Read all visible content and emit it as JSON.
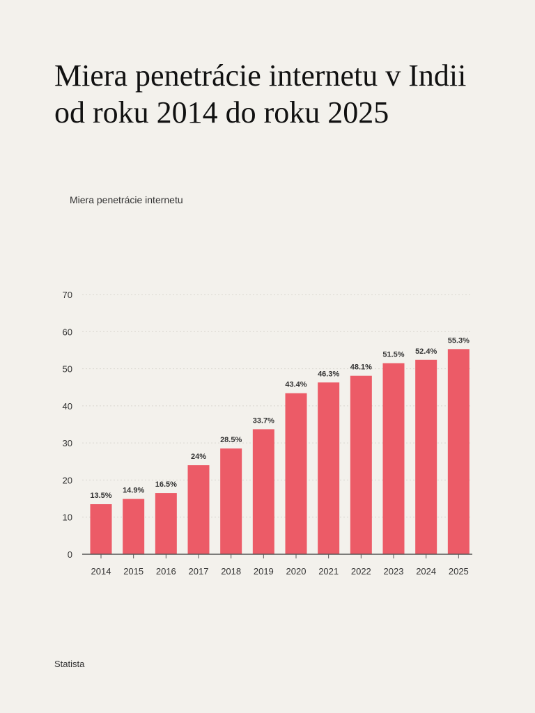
{
  "title": "Miera penetrácie internetu v Indii od roku 2014 do roku 2025",
  "source": "Statista",
  "chart_data": {
    "type": "bar",
    "title": "Miera penetrácie internetu v Indii od roku 2014 do roku 2025",
    "xlabel": "",
    "ylabel": "",
    "categories": [
      "2014",
      "2015",
      "2016",
      "2017",
      "2018",
      "2019",
      "2020",
      "2021",
      "2022",
      "2023",
      "2024",
      "2025"
    ],
    "series": [
      {
        "name": "Miera penetrácie internetu",
        "values": [
          13.5,
          14.9,
          16.5,
          24,
          28.5,
          33.7,
          43.4,
          46.3,
          48.1,
          51.5,
          52.4,
          55.3
        ],
        "labels": [
          "13.5%",
          "14.9%",
          "16.5%",
          "24%",
          "28.5%",
          "33.7%",
          "43.4%",
          "46.3%",
          "48.1%",
          "51.5%",
          "52.4%",
          "55.3%"
        ]
      }
    ],
    "ylim": [
      0,
      70
    ],
    "yticks": [
      0,
      10,
      20,
      30,
      40,
      50,
      60,
      70
    ],
    "grid": true,
    "legend": "top-left",
    "bar_color": "#ec5b67"
  }
}
